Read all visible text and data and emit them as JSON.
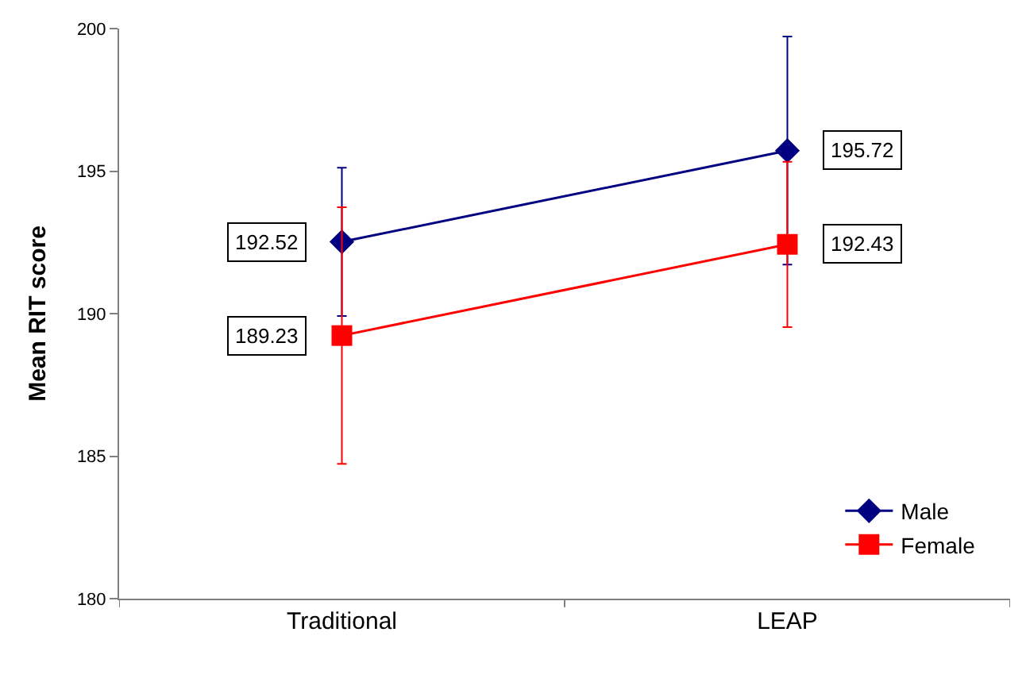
{
  "chart_data": {
    "type": "line",
    "ylabel": "Mean RIT score",
    "categories": [
      "Traditional",
      "LEAP"
    ],
    "series": [
      {
        "name": "Male",
        "color": "#000080",
        "values": [
          192.52,
          195.72
        ],
        "errors": [
          2.6,
          4.0
        ],
        "marker": "diamond"
      },
      {
        "name": "Female",
        "color": "#ff0000",
        "values": [
          189.23,
          192.43
        ],
        "errors": [
          4.5,
          2.9
        ],
        "marker": "square"
      }
    ],
    "ylim": [
      180,
      200
    ],
    "yticks": [
      180,
      185,
      190,
      195,
      200
    ],
    "legend": "bottom right",
    "data_labels": true,
    "line_style": "solid"
  }
}
